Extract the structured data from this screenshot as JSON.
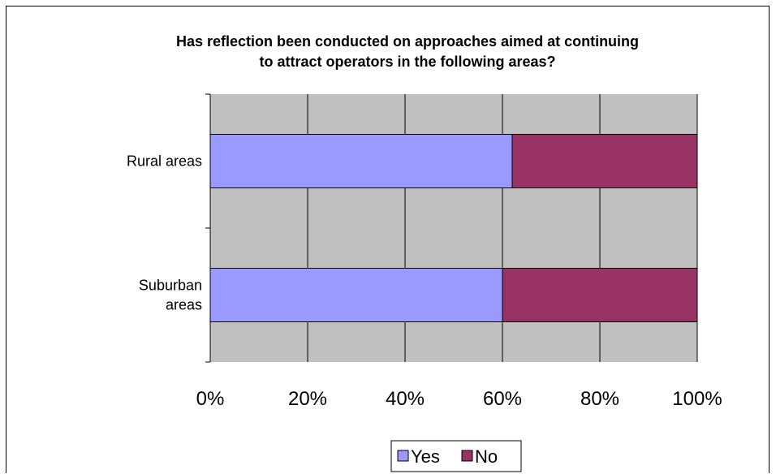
{
  "chart_data": {
    "type": "bar",
    "orientation": "horizontal",
    "stacked": "percent",
    "title": "Has reflection been conducted on approaches aimed at continuing to attract operators in the following areas?",
    "title_lines": [
      "Has reflection been conducted on approaches aimed at continuing",
      "to attract operators in the following areas?"
    ],
    "categories": [
      {
        "lines": [
          "Rural areas"
        ]
      },
      {
        "lines": [
          "Suburban",
          "areas"
        ]
      }
    ],
    "category_names": [
      "Rural areas",
      "Suburban areas"
    ],
    "series": [
      {
        "name": "Yes",
        "values": [
          62,
          60
        ]
      },
      {
        "name": "No",
        "values": [
          38,
          40
        ]
      }
    ],
    "xlim": [
      0,
      100
    ],
    "x_ticks": [
      "0%",
      "20%",
      "40%",
      "60%",
      "80%",
      "100%"
    ],
    "grid": true,
    "legend_position": "bottom"
  },
  "colors": {
    "plot_background": "#c0c0c0",
    "grid": "#000000",
    "series": [
      "#9999ff",
      "#993366"
    ]
  }
}
